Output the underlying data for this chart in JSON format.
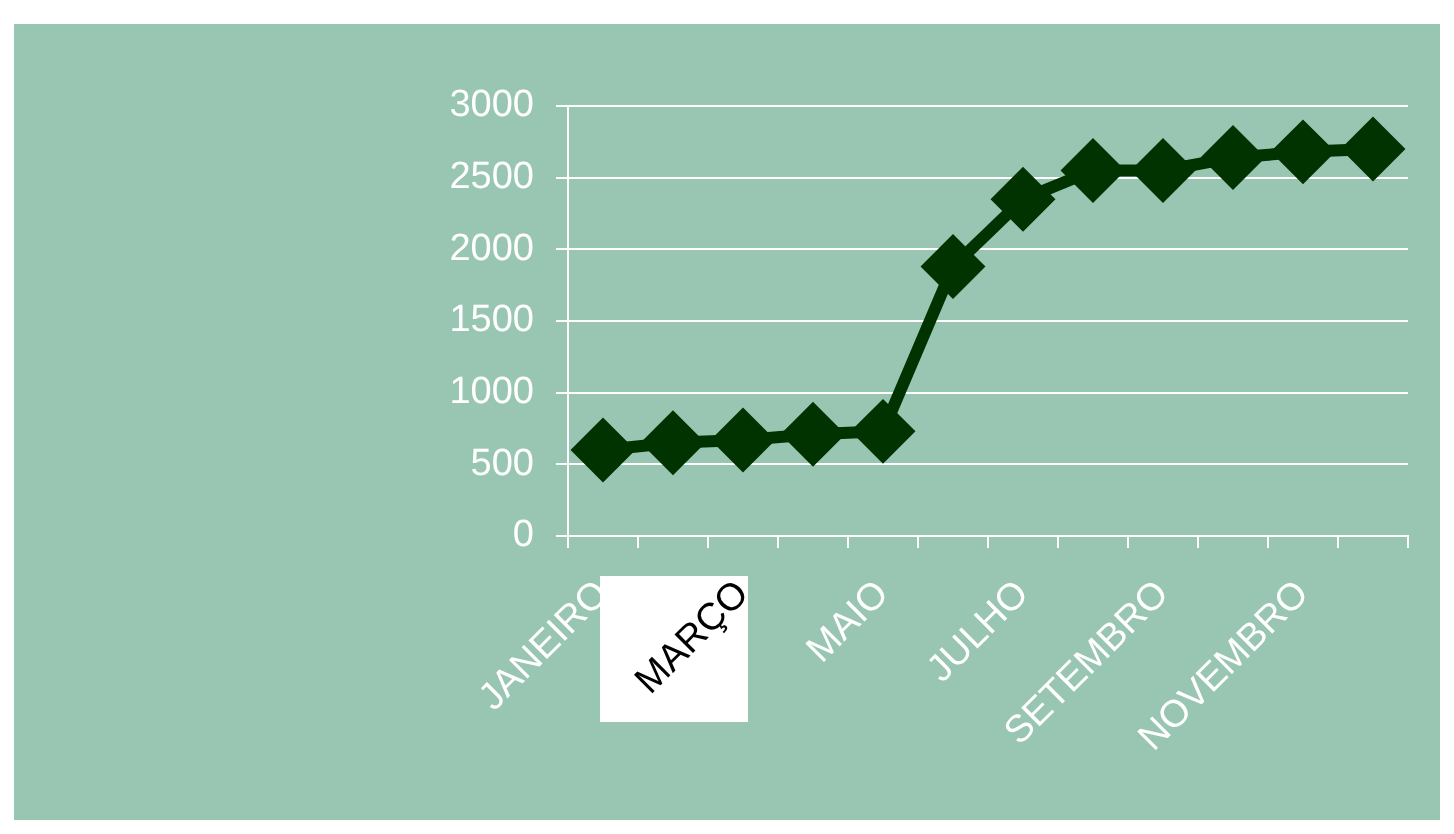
{
  "chart_data": {
    "type": "line",
    "categories": [
      "JANEIRO",
      null,
      "MARÇO",
      null,
      "MAIO",
      null,
      "JULHO",
      null,
      "SETEMBRO",
      null,
      "NOVEMBRO",
      null
    ],
    "series": [
      {
        "color": "#003300",
        "values": [
          600,
          650,
          670,
          710,
          730,
          1880,
          2350,
          2550,
          2550,
          2640,
          2680,
          2700
        ]
      }
    ],
    "ylim": [
      0,
      3000
    ],
    "yticks": [
      0,
      500,
      1000,
      1500,
      2000,
      2500,
      3000
    ],
    "grid": "y",
    "marker": "diamond",
    "line_style": "solid"
  }
}
